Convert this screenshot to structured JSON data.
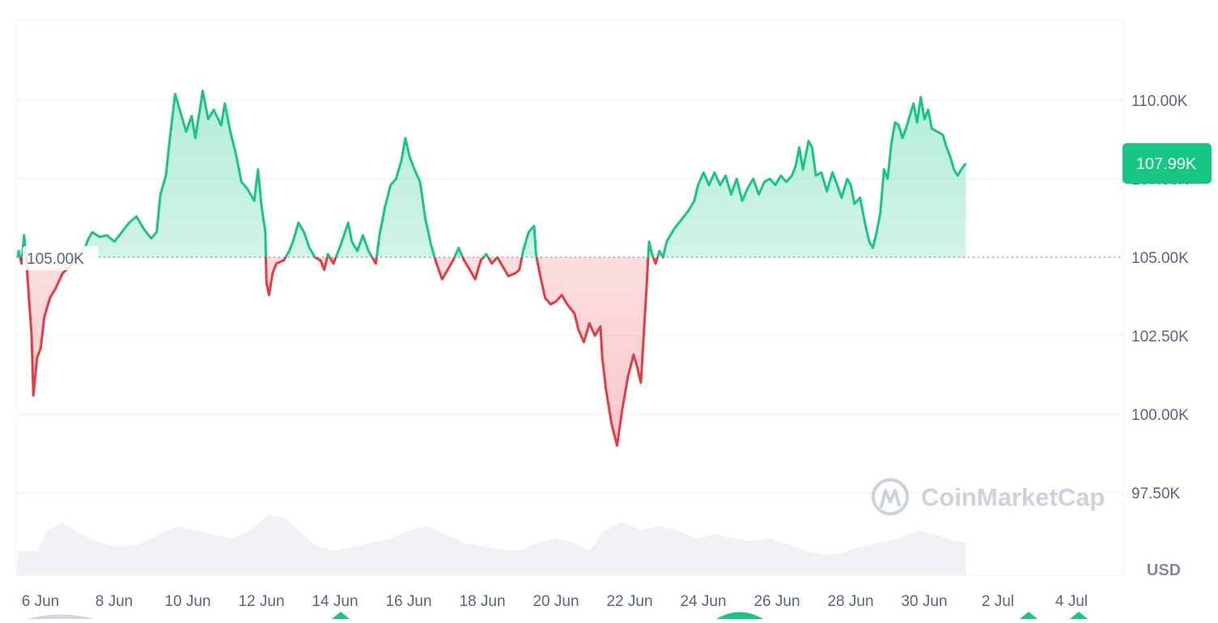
{
  "chart_data": {
    "type": "area",
    "currency_label": "USD",
    "watermark": "CoinMarketCap",
    "baseline": {
      "value": 105000,
      "label": "105.00K"
    },
    "current_price": {
      "value": 107990,
      "label": "107.99K"
    },
    "colors": {
      "up": "#16c784",
      "down": "#ea3943",
      "grid": "#eff2f5",
      "volume": "#eff1f5",
      "axis_text": "#58667e"
    },
    "y_axis": {
      "min": 95250,
      "max": 112500,
      "ticks": [
        {
          "value": 110000,
          "label": "110.00K"
        },
        {
          "value": 107500,
          "label": "107.50K"
        },
        {
          "value": 105000,
          "label": "105.00K"
        },
        {
          "value": 102500,
          "label": "102.50K"
        },
        {
          "value": 100000,
          "label": "100.00K"
        },
        {
          "value": 97500,
          "label": "97.50K"
        }
      ]
    },
    "x_axis": {
      "ticks": [
        {
          "day": 0,
          "label": "6 Jun"
        },
        {
          "day": 2,
          "label": "8 Jun"
        },
        {
          "day": 4,
          "label": "10 Jun"
        },
        {
          "day": 6,
          "label": "12 Jun"
        },
        {
          "day": 8,
          "label": "14 Jun"
        },
        {
          "day": 10,
          "label": "16 Jun"
        },
        {
          "day": 12,
          "label": "18 Jun"
        },
        {
          "day": 14,
          "label": "20 Jun"
        },
        {
          "day": 16,
          "label": "22 Jun"
        },
        {
          "day": 18,
          "label": "24 Jun"
        },
        {
          "day": 20,
          "label": "26 Jun"
        },
        {
          "day": 22,
          "label": "28 Jun"
        },
        {
          "day": 24,
          "label": "30 Jun"
        },
        {
          "day": 26,
          "label": "2 Jul"
        },
        {
          "day": 28,
          "label": "4 Jul"
        }
      ]
    },
    "series": [
      {
        "points": [
          [
            -0.02,
            105000
          ],
          [
            0.0,
            105200
          ],
          [
            0.08,
            104800
          ],
          [
            0.15,
            105700
          ],
          [
            0.2,
            105100
          ],
          [
            0.28,
            103700
          ],
          [
            0.35,
            102600
          ],
          [
            0.4,
            100600
          ],
          [
            0.5,
            101800
          ],
          [
            0.6,
            102100
          ],
          [
            0.7,
            103100
          ],
          [
            0.85,
            103700
          ],
          [
            1.0,
            104000
          ],
          [
            1.2,
            104500
          ],
          [
            1.4,
            104700
          ],
          [
            1.6,
            105100
          ],
          [
            1.8,
            105300
          ],
          [
            1.9,
            105600
          ],
          [
            2.0,
            105800
          ],
          [
            2.2,
            105650
          ],
          [
            2.4,
            105700
          ],
          [
            2.6,
            105500
          ],
          [
            2.8,
            105800
          ],
          [
            3.0,
            106100
          ],
          [
            3.2,
            106300
          ],
          [
            3.4,
            105900
          ],
          [
            3.6,
            105600
          ],
          [
            3.75,
            105800
          ],
          [
            3.85,
            107000
          ],
          [
            4.0,
            107600
          ],
          [
            4.1,
            108700
          ],
          [
            4.25,
            110200
          ],
          [
            4.4,
            109600
          ],
          [
            4.55,
            109000
          ],
          [
            4.7,
            109500
          ],
          [
            4.8,
            108800
          ],
          [
            5.0,
            110300
          ],
          [
            5.15,
            109400
          ],
          [
            5.3,
            109700
          ],
          [
            5.5,
            109200
          ],
          [
            5.6,
            109900
          ],
          [
            5.75,
            109000
          ],
          [
            5.9,
            108300
          ],
          [
            6.05,
            107400
          ],
          [
            6.2,
            107200
          ],
          [
            6.4,
            106800
          ],
          [
            6.5,
            107800
          ],
          [
            6.6,
            106600
          ],
          [
            6.7,
            105800
          ],
          [
            6.73,
            104200
          ],
          [
            6.8,
            103800
          ],
          [
            6.9,
            104500
          ],
          [
            7.0,
            104800
          ],
          [
            7.2,
            104900
          ],
          [
            7.35,
            105200
          ],
          [
            7.45,
            105500
          ],
          [
            7.6,
            106100
          ],
          [
            7.75,
            105800
          ],
          [
            7.9,
            105300
          ],
          [
            8.05,
            105000
          ],
          [
            8.2,
            104900
          ],
          [
            8.3,
            104600
          ],
          [
            8.4,
            105100
          ],
          [
            8.55,
            104800
          ],
          [
            8.75,
            105400
          ],
          [
            8.95,
            106100
          ],
          [
            9.05,
            105500
          ],
          [
            9.2,
            105200
          ],
          [
            9.35,
            105700
          ],
          [
            9.5,
            105200
          ],
          [
            9.7,
            104800
          ],
          [
            9.8,
            105700
          ],
          [
            9.95,
            106600
          ],
          [
            10.1,
            107300
          ],
          [
            10.25,
            107500
          ],
          [
            10.4,
            108100
          ],
          [
            10.5,
            108800
          ],
          [
            10.62,
            108200
          ],
          [
            10.75,
            107800
          ],
          [
            10.9,
            107400
          ],
          [
            11.05,
            106200
          ],
          [
            11.2,
            105400
          ],
          [
            11.35,
            104800
          ],
          [
            11.5,
            104300
          ],
          [
            11.65,
            104600
          ],
          [
            11.8,
            104900
          ],
          [
            11.95,
            105300
          ],
          [
            12.1,
            104900
          ],
          [
            12.25,
            104600
          ],
          [
            12.4,
            104300
          ],
          [
            12.55,
            104900
          ],
          [
            12.7,
            105100
          ],
          [
            12.85,
            104800
          ],
          [
            13.0,
            105000
          ],
          [
            13.15,
            104700
          ],
          [
            13.3,
            104400
          ],
          [
            13.5,
            104500
          ],
          [
            13.6,
            104600
          ],
          [
            13.7,
            105200
          ],
          [
            13.85,
            105800
          ],
          [
            14.0,
            106000
          ],
          [
            14.05,
            105100
          ],
          [
            14.15,
            104500
          ],
          [
            14.3,
            103700
          ],
          [
            14.45,
            103500
          ],
          [
            14.6,
            103600
          ],
          [
            14.75,
            103800
          ],
          [
            14.9,
            103500
          ],
          [
            15.1,
            103200
          ],
          [
            15.2,
            102700
          ],
          [
            15.35,
            102300
          ],
          [
            15.5,
            102900
          ],
          [
            15.65,
            102500
          ],
          [
            15.8,
            102800
          ],
          [
            15.85,
            101800
          ],
          [
            15.95,
            100800
          ],
          [
            16.1,
            99700
          ],
          [
            16.25,
            99000
          ],
          [
            16.4,
            100200
          ],
          [
            16.55,
            101200
          ],
          [
            16.7,
            101900
          ],
          [
            16.8,
            101500
          ],
          [
            16.9,
            101000
          ],
          [
            16.98,
            102600
          ],
          [
            17.05,
            104000
          ],
          [
            17.12,
            105500
          ],
          [
            17.2,
            105100
          ],
          [
            17.3,
            104800
          ],
          [
            17.4,
            105200
          ],
          [
            17.5,
            105000
          ],
          [
            17.6,
            105500
          ],
          [
            17.8,
            105900
          ],
          [
            18.0,
            106200
          ],
          [
            18.2,
            106500
          ],
          [
            18.35,
            106800
          ],
          [
            18.45,
            107300
          ],
          [
            18.6,
            107700
          ],
          [
            18.75,
            107300
          ],
          [
            18.9,
            107700
          ],
          [
            19.05,
            107300
          ],
          [
            19.2,
            107600
          ],
          [
            19.35,
            107000
          ],
          [
            19.5,
            107500
          ],
          [
            19.65,
            106800
          ],
          [
            19.8,
            107200
          ],
          [
            19.95,
            107500
          ],
          [
            20.1,
            107000
          ],
          [
            20.25,
            107400
          ],
          [
            20.4,
            107500
          ],
          [
            20.55,
            107300
          ],
          [
            20.7,
            107600
          ],
          [
            20.85,
            107400
          ],
          [
            21.0,
            107600
          ],
          [
            21.1,
            107900
          ],
          [
            21.2,
            108500
          ],
          [
            21.3,
            107800
          ],
          [
            21.45,
            108700
          ],
          [
            21.55,
            108500
          ],
          [
            21.65,
            107600
          ],
          [
            21.8,
            107700
          ],
          [
            21.95,
            107100
          ],
          [
            22.1,
            107700
          ],
          [
            22.2,
            107400
          ],
          [
            22.35,
            106900
          ],
          [
            22.5,
            107500
          ],
          [
            22.6,
            107300
          ],
          [
            22.7,
            106700
          ],
          [
            22.85,
            106900
          ],
          [
            23.0,
            106000
          ],
          [
            23.1,
            105500
          ],
          [
            23.2,
            105300
          ],
          [
            23.3,
            105800
          ],
          [
            23.4,
            106400
          ],
          [
            23.5,
            107800
          ],
          [
            23.6,
            107500
          ],
          [
            23.7,
            108600
          ],
          [
            23.8,
            109300
          ],
          [
            23.9,
            109200
          ],
          [
            24.0,
            108800
          ],
          [
            24.1,
            109100
          ],
          [
            24.2,
            109500
          ],
          [
            24.3,
            109900
          ],
          [
            24.4,
            109300
          ],
          [
            24.5,
            110100
          ],
          [
            24.6,
            109400
          ],
          [
            24.7,
            109700
          ],
          [
            24.8,
            109100
          ],
          [
            24.95,
            109000
          ],
          [
            25.1,
            108900
          ],
          [
            25.2,
            108500
          ],
          [
            25.3,
            108200
          ],
          [
            25.4,
            107800
          ],
          [
            25.5,
            107600
          ],
          [
            25.6,
            107800
          ],
          [
            25.72,
            107990
          ]
        ]
      }
    ],
    "volume": [
      [
        0.0,
        0.3
      ],
      [
        0.5,
        0.3
      ],
      [
        0.8,
        0.55
      ],
      [
        1.2,
        0.65
      ],
      [
        1.7,
        0.5
      ],
      [
        2.2,
        0.4
      ],
      [
        2.7,
        0.35
      ],
      [
        3.3,
        0.38
      ],
      [
        3.8,
        0.5
      ],
      [
        4.3,
        0.6
      ],
      [
        4.8,
        0.55
      ],
      [
        5.3,
        0.5
      ],
      [
        5.8,
        0.45
      ],
      [
        6.3,
        0.55
      ],
      [
        6.8,
        0.75
      ],
      [
        7.2,
        0.7
      ],
      [
        7.6,
        0.55
      ],
      [
        8.1,
        0.35
      ],
      [
        8.6,
        0.3
      ],
      [
        9.1,
        0.35
      ],
      [
        9.6,
        0.4
      ],
      [
        10.1,
        0.45
      ],
      [
        10.6,
        0.55
      ],
      [
        11.1,
        0.6
      ],
      [
        11.6,
        0.5
      ],
      [
        12.1,
        0.4
      ],
      [
        12.6,
        0.35
      ],
      [
        13.1,
        0.32
      ],
      [
        13.6,
        0.3
      ],
      [
        14.1,
        0.4
      ],
      [
        14.6,
        0.45
      ],
      [
        15.1,
        0.4
      ],
      [
        15.5,
        0.3
      ],
      [
        15.9,
        0.55
      ],
      [
        16.4,
        0.65
      ],
      [
        16.9,
        0.55
      ],
      [
        17.4,
        0.6
      ],
      [
        17.9,
        0.55
      ],
      [
        18.4,
        0.45
      ],
      [
        18.9,
        0.5
      ],
      [
        19.4,
        0.45
      ],
      [
        19.9,
        0.42
      ],
      [
        20.4,
        0.45
      ],
      [
        20.9,
        0.38
      ],
      [
        21.4,
        0.3
      ],
      [
        21.9,
        0.25
      ],
      [
        22.4,
        0.28
      ],
      [
        22.9,
        0.35
      ],
      [
        23.4,
        0.4
      ],
      [
        23.9,
        0.45
      ],
      [
        24.4,
        0.55
      ],
      [
        24.9,
        0.5
      ],
      [
        25.4,
        0.42
      ],
      [
        25.72,
        0.4
      ]
    ]
  }
}
